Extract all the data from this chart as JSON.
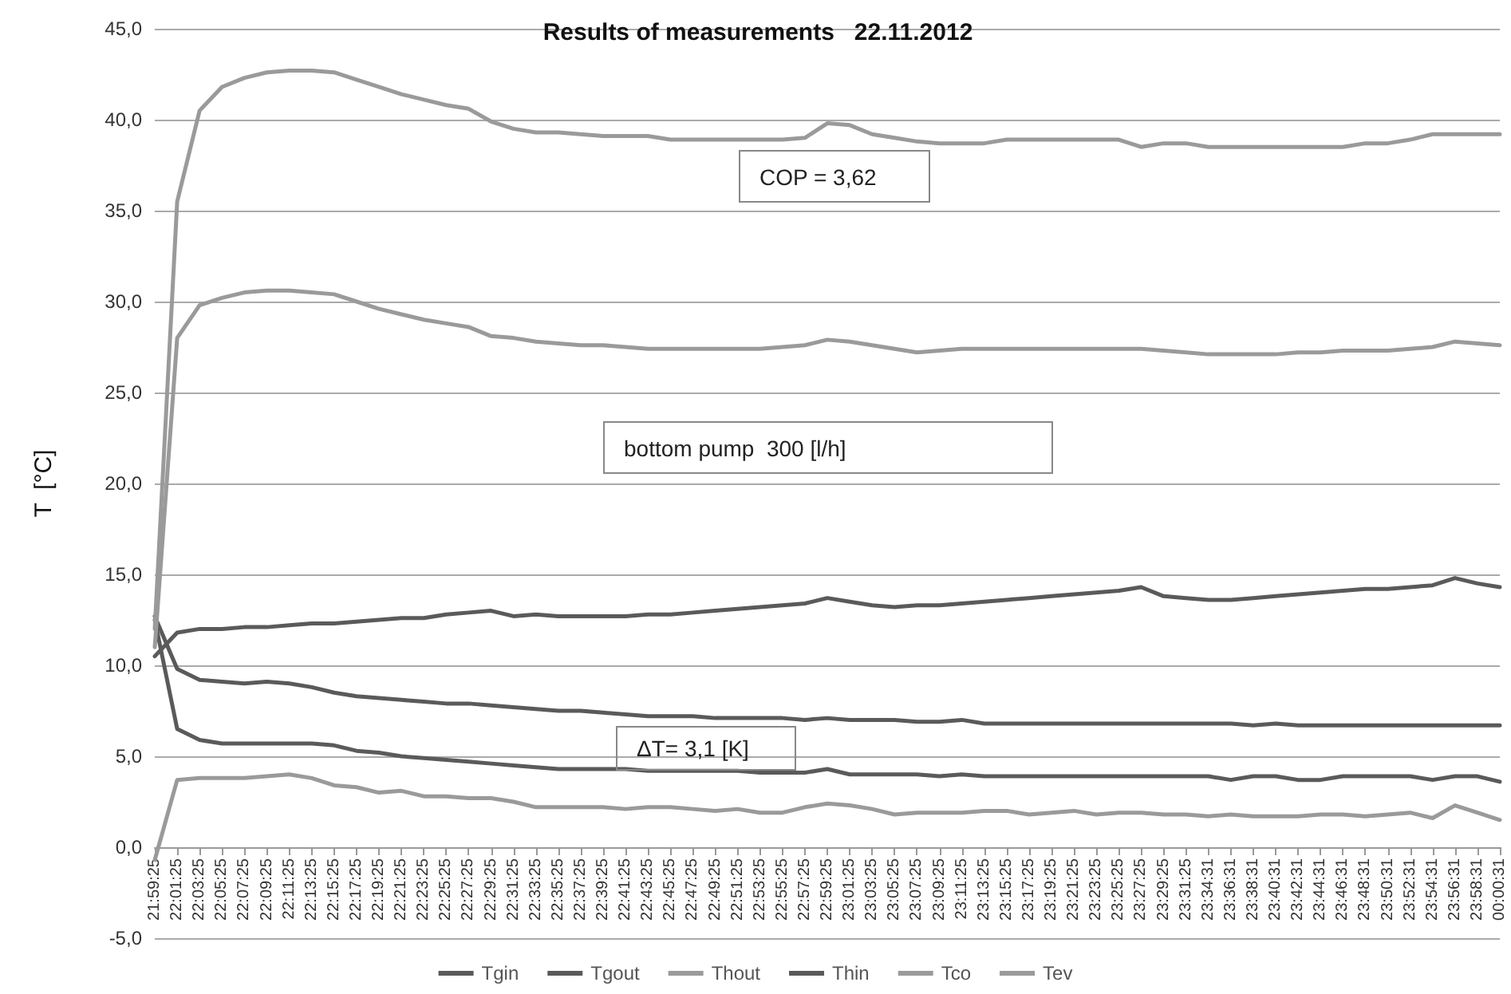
{
  "chart_data": {
    "type": "line",
    "title": "Results of measurements   22.11.2012",
    "ylabel": "T  [°C]",
    "categories": [
      "21:59:25",
      "22:01:25",
      "22:03:25",
      "22:05:25",
      "22:07:25",
      "22:09:25",
      "22:11:25",
      "22:13:25",
      "22:15:25",
      "22:17:25",
      "22:19:25",
      "22:21:25",
      "22:23:25",
      "22:25:25",
      "22:27:25",
      "22:29:25",
      "22:31:25",
      "22:33:25",
      "22:35:25",
      "22:37:25",
      "22:39:25",
      "22:41:25",
      "22:43:25",
      "22:45:25",
      "22:47:25",
      "22:49:25",
      "22:51:25",
      "22:53:25",
      "22:55:25",
      "22:57:25",
      "22:59:25",
      "23:01:25",
      "23:03:25",
      "23:05:25",
      "23:07:25",
      "23:09:25",
      "23:11:25",
      "23:13:25",
      "23:15:25",
      "23:17:25",
      "23:19:25",
      "23:21:25",
      "23:23:25",
      "23:25:25",
      "23:27:25",
      "23:29:25",
      "23:31:25",
      "23:34:31",
      "23:36:31",
      "23:38:31",
      "23:40:31",
      "23:42:31",
      "23:44:31",
      "23:46:31",
      "23:48:31",
      "23:50:31",
      "23:52:31",
      "23:54:31",
      "23:56:31",
      "23:58:31",
      "00:00:31"
    ],
    "series": [
      {
        "name": "Tgin",
        "color": "#5a5a5a",
        "values": [
          12.7,
          9.8,
          9.2,
          9.1,
          9.0,
          9.1,
          9.0,
          8.8,
          8.5,
          8.3,
          8.2,
          8.1,
          8.0,
          7.9,
          7.9,
          7.8,
          7.7,
          7.6,
          7.5,
          7.5,
          7.4,
          7.3,
          7.2,
          7.2,
          7.2,
          7.1,
          7.1,
          7.1,
          7.1,
          7.0,
          7.1,
          7.0,
          7.0,
          7.0,
          6.9,
          6.9,
          7.0,
          6.8,
          6.8,
          6.8,
          6.8,
          6.8,
          6.8,
          6.8,
          6.8,
          6.8,
          6.8,
          6.8,
          6.8,
          6.7,
          6.8,
          6.7,
          6.7,
          6.7,
          6.7,
          6.7,
          6.7,
          6.7,
          6.7,
          6.7,
          6.7
        ]
      },
      {
        "name": "Tgout",
        "color": "#5a5a5a",
        "values": [
          12.5,
          6.5,
          5.9,
          5.7,
          5.7,
          5.7,
          5.7,
          5.7,
          5.6,
          5.3,
          5.2,
          5.0,
          4.9,
          4.8,
          4.7,
          4.6,
          4.5,
          4.4,
          4.3,
          4.3,
          4.3,
          4.3,
          4.2,
          4.2,
          4.2,
          4.2,
          4.2,
          4.1,
          4.1,
          4.1,
          4.3,
          4.0,
          4.0,
          4.0,
          4.0,
          3.9,
          4.0,
          3.9,
          3.9,
          3.9,
          3.9,
          3.9,
          3.9,
          3.9,
          3.9,
          3.9,
          3.9,
          3.9,
          3.7,
          3.9,
          3.9,
          3.7,
          3.7,
          3.9,
          3.9,
          3.9,
          3.9,
          3.7,
          3.9,
          3.9,
          3.6
        ]
      },
      {
        "name": "Thout",
        "color": "#9a9a9a",
        "values": [
          11,
          28,
          29.8,
          30.2,
          30.5,
          30.6,
          30.6,
          30.5,
          30.4,
          30.0,
          29.6,
          29.3,
          29.0,
          28.8,
          28.6,
          28.1,
          28.0,
          27.8,
          27.7,
          27.6,
          27.6,
          27.5,
          27.4,
          27.4,
          27.4,
          27.4,
          27.4,
          27.4,
          27.5,
          27.6,
          27.9,
          27.8,
          27.6,
          27.4,
          27.2,
          27.3,
          27.4,
          27.4,
          27.4,
          27.4,
          27.4,
          27.4,
          27.4,
          27.4,
          27.4,
          27.3,
          27.2,
          27.1,
          27.1,
          27.1,
          27.1,
          27.2,
          27.2,
          27.3,
          27.3,
          27.3,
          27.4,
          27.5,
          27.8,
          27.7,
          27.6
        ]
      },
      {
        "name": "Thin",
        "color": "#5a5a5a",
        "values": [
          10.5,
          11.8,
          12.0,
          12.0,
          12.1,
          12.1,
          12.2,
          12.3,
          12.3,
          12.4,
          12.5,
          12.6,
          12.6,
          12.8,
          12.9,
          13.0,
          12.7,
          12.8,
          12.7,
          12.7,
          12.7,
          12.7,
          12.8,
          12.8,
          12.9,
          13.0,
          13.1,
          13.2,
          13.3,
          13.4,
          13.7,
          13.5,
          13.3,
          13.2,
          13.3,
          13.3,
          13.4,
          13.5,
          13.6,
          13.7,
          13.8,
          13.9,
          14.0,
          14.1,
          14.3,
          13.8,
          13.7,
          13.6,
          13.6,
          13.7,
          13.8,
          13.9,
          14.0,
          14.1,
          14.2,
          14.2,
          14.3,
          14.4,
          14.8,
          14.5,
          14.3
        ]
      },
      {
        "name": "Tco",
        "color": "#9a9a9a",
        "values": [
          12,
          35.5,
          40.5,
          41.8,
          42.3,
          42.6,
          42.7,
          42.7,
          42.6,
          42.2,
          41.8,
          41.4,
          41.1,
          40.8,
          40.6,
          39.9,
          39.5,
          39.3,
          39.3,
          39.2,
          39.1,
          39.1,
          39.1,
          38.9,
          38.9,
          38.9,
          38.9,
          38.9,
          38.9,
          39.0,
          39.8,
          39.7,
          39.2,
          39.0,
          38.8,
          38.7,
          38.7,
          38.7,
          38.9,
          38.9,
          38.9,
          38.9,
          38.9,
          38.9,
          38.5,
          38.7,
          38.7,
          38.5,
          38.5,
          38.5,
          38.5,
          38.5,
          38.5,
          38.5,
          38.7,
          38.7,
          38.9,
          39.2,
          39.2,
          39.2,
          39.2
        ]
      },
      {
        "name": "Tev",
        "color": "#9a9a9a",
        "values": [
          -0.7,
          3.7,
          3.8,
          3.8,
          3.8,
          3.9,
          4.0,
          3.8,
          3.4,
          3.3,
          3.0,
          3.1,
          2.8,
          2.8,
          2.7,
          2.7,
          2.5,
          2.2,
          2.2,
          2.2,
          2.2,
          2.1,
          2.2,
          2.2,
          2.1,
          2.0,
          2.1,
          1.9,
          1.9,
          2.2,
          2.4,
          2.3,
          2.1,
          1.8,
          1.9,
          1.9,
          1.9,
          2.0,
          2.0,
          1.8,
          1.9,
          2.0,
          1.8,
          1.9,
          1.9,
          1.8,
          1.8,
          1.7,
          1.8,
          1.7,
          1.7,
          1.7,
          1.8,
          1.8,
          1.7,
          1.8,
          1.9,
          1.6,
          2.3,
          1.9,
          1.5
        ]
      }
    ],
    "ylim": [
      -5,
      45
    ],
    "yticks": [
      {
        "value": -5,
        "label": "-5,0"
      },
      {
        "value": 0,
        "label": "0,0"
      },
      {
        "value": 5,
        "label": "5,0"
      },
      {
        "value": 10,
        "label": "10,0"
      },
      {
        "value": 15,
        "label": "15,0"
      },
      {
        "value": 20,
        "label": "20,0"
      },
      {
        "value": 25,
        "label": "25,0"
      },
      {
        "value": 30,
        "label": "30,0"
      },
      {
        "value": 35,
        "label": "35,0"
      },
      {
        "value": 40,
        "label": "40,0"
      },
      {
        "value": 45,
        "label": "45,0"
      }
    ],
    "annotations": [
      "COP = 3,62",
      "bottom pump  300 [l/h]",
      "ΔT= 3,1 [K]"
    ],
    "grid": "y",
    "legend": "bottom",
    "marker": "none",
    "line_style": "solid"
  }
}
